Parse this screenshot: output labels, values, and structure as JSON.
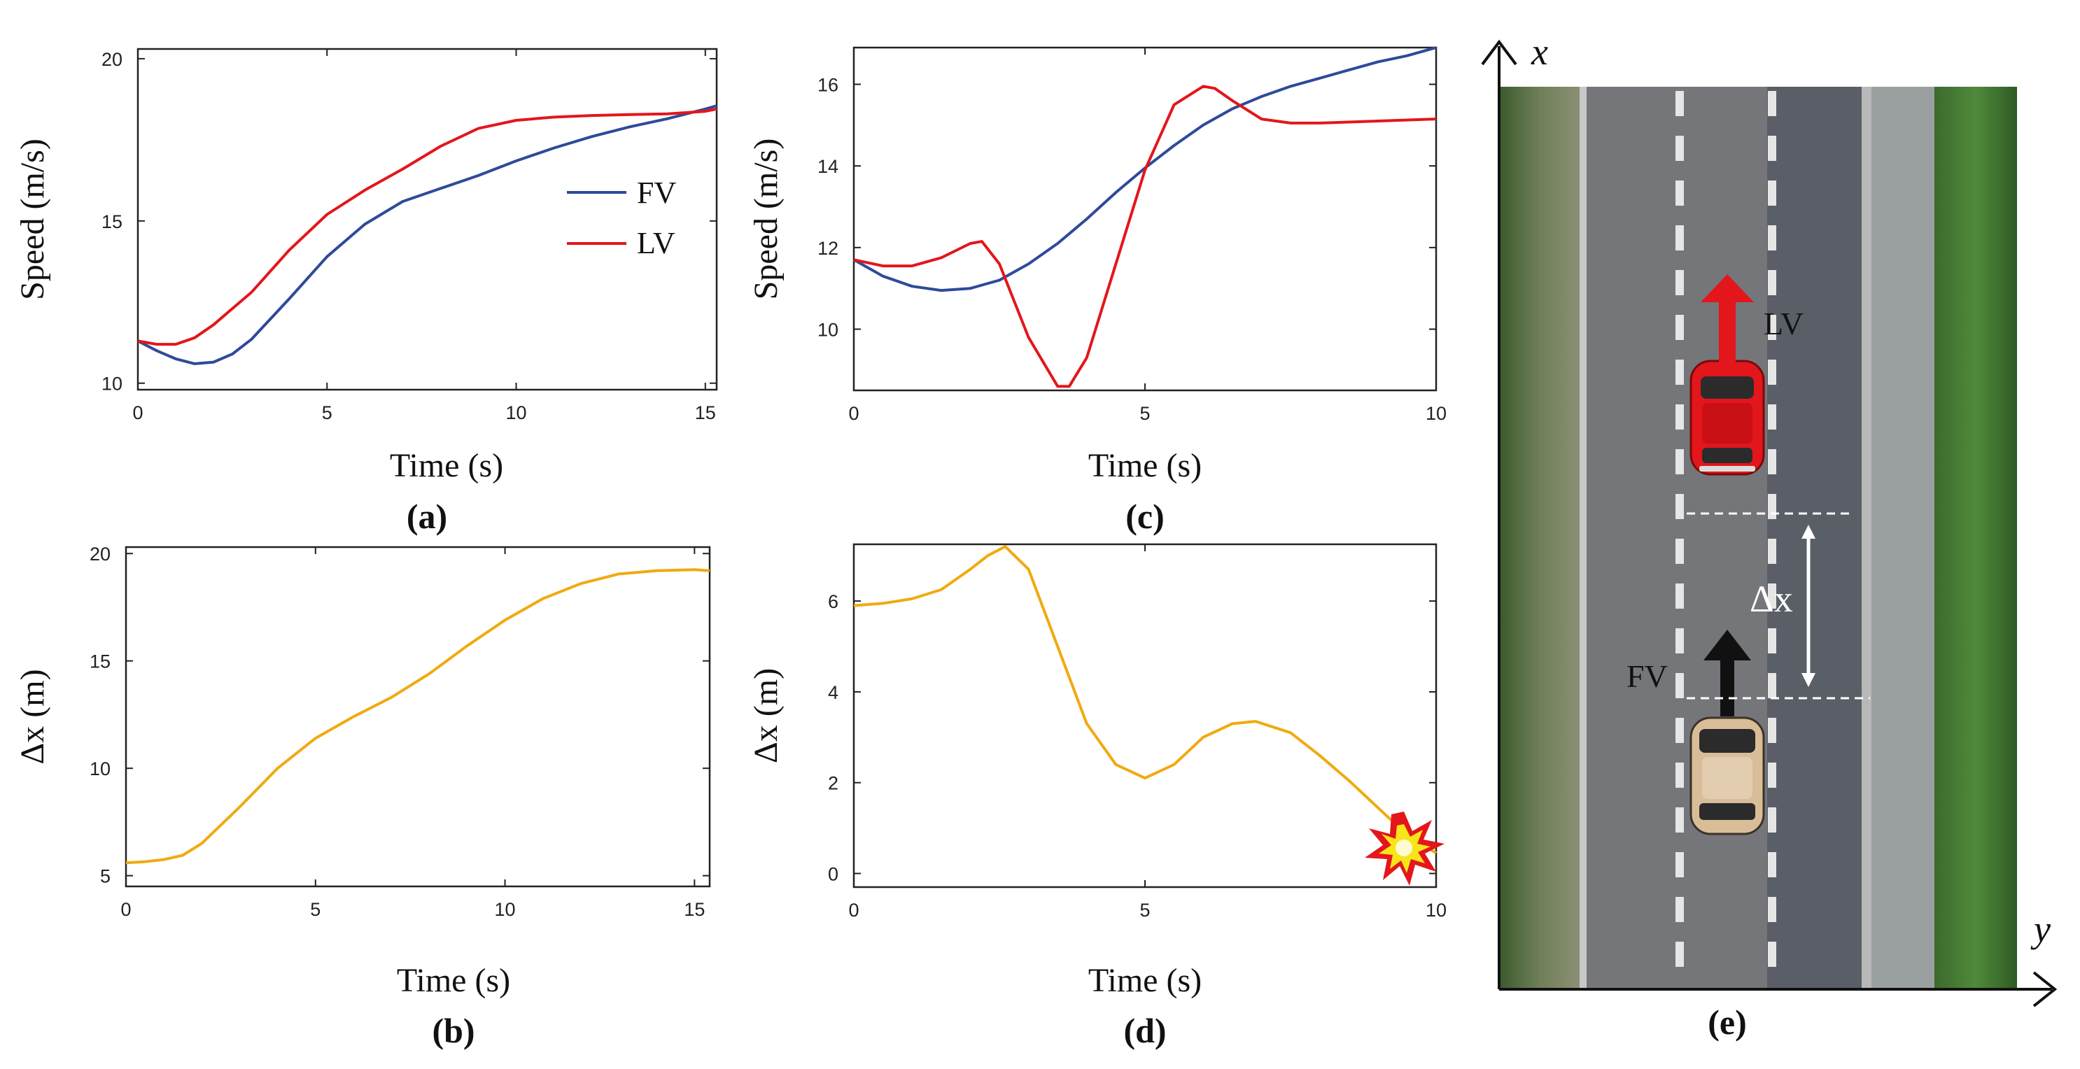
{
  "colors": {
    "fv": "#2e4a9a",
    "lv": "#e3161c",
    "dx": "#f0aa10"
  },
  "chart_data": [
    {
      "id": "a",
      "type": "line",
      "panel_label": "(a)",
      "xlabel": "Time (s)",
      "ylabel": "Speed (m/s)",
      "xlim": [
        0,
        15.3
      ],
      "ylim": [
        9.8,
        20.3
      ],
      "xticks": [
        0,
        5,
        10,
        15
      ],
      "yticks": [
        10,
        15,
        20
      ],
      "legend": [
        "FV",
        "LV"
      ],
      "legend_position": "center-right",
      "series": [
        {
          "name": "FV",
          "color_key": "fv",
          "x": [
            0,
            0.5,
            1,
            1.5,
            2,
            2.5,
            3,
            4,
            5,
            6,
            7,
            8,
            9,
            10,
            11,
            12,
            13,
            14,
            15,
            15.3
          ],
          "y": [
            11.3,
            11,
            10.75,
            10.6,
            10.65,
            10.9,
            11.35,
            12.6,
            13.9,
            14.9,
            15.6,
            16.0,
            16.4,
            16.85,
            17.25,
            17.6,
            17.9,
            18.15,
            18.45,
            18.55
          ]
        },
        {
          "name": "LV",
          "color_key": "lv",
          "x": [
            0,
            0.5,
            1,
            1.5,
            2,
            2.5,
            3,
            4,
            5,
            6,
            7,
            8,
            9,
            10,
            11,
            12,
            13,
            14,
            15,
            15.3
          ],
          "y": [
            11.3,
            11.2,
            11.2,
            11.4,
            11.8,
            12.3,
            12.8,
            14.1,
            15.2,
            15.95,
            16.6,
            17.3,
            17.85,
            18.1,
            18.2,
            18.25,
            18.28,
            18.3,
            18.38,
            18.45
          ]
        }
      ]
    },
    {
      "id": "b",
      "type": "line",
      "panel_label": "(b)",
      "xlabel": "Time (s)",
      "ylabel": "Δx (m)",
      "xlim": [
        0,
        15.4
      ],
      "ylim": [
        4.5,
        20.3
      ],
      "xticks": [
        0,
        5,
        10,
        15
      ],
      "yticks": [
        5,
        10,
        15,
        20
      ],
      "series": [
        {
          "name": "Δx",
          "color_key": "dx",
          "x": [
            0,
            0.5,
            1,
            1.5,
            2,
            3,
            4,
            5,
            6,
            7,
            8,
            9,
            10,
            11,
            12,
            13,
            14,
            15,
            15.4
          ],
          "y": [
            5.6,
            5.65,
            5.75,
            5.95,
            6.5,
            8.2,
            10.0,
            11.4,
            12.4,
            13.3,
            14.4,
            15.7,
            16.9,
            17.9,
            18.6,
            19.05,
            19.2,
            19.25,
            19.2
          ]
        }
      ]
    },
    {
      "id": "c",
      "type": "line",
      "panel_label": "(c)",
      "xlabel": "Time (s)",
      "ylabel": "Speed (m/s)",
      "xlim": [
        0,
        10
      ],
      "ylim": [
        8.5,
        16.9
      ],
      "xticks": [
        0,
        5,
        10
      ],
      "yticks": [
        10,
        12,
        14,
        16
      ],
      "series": [
        {
          "name": "FV",
          "color_key": "fv",
          "x": [
            0,
            0.5,
            1,
            1.5,
            2,
            2.5,
            3,
            3.5,
            4,
            4.5,
            5,
            5.5,
            6,
            6.5,
            7,
            7.5,
            8,
            8.5,
            9,
            9.5,
            10
          ],
          "y": [
            11.7,
            11.3,
            11.05,
            10.95,
            11.0,
            11.2,
            11.6,
            12.1,
            12.7,
            13.35,
            13.95,
            14.5,
            15.0,
            15.4,
            15.7,
            15.95,
            16.15,
            16.35,
            16.55,
            16.7,
            16.9
          ]
        },
        {
          "name": "LV",
          "color_key": "lv",
          "x": [
            0,
            0.5,
            1,
            1.5,
            2,
            2.2,
            2.5,
            3,
            3.5,
            3.7,
            4,
            4.5,
            5,
            5.5,
            6,
            6.2,
            6.5,
            7,
            7.5,
            8,
            9,
            10
          ],
          "y": [
            11.7,
            11.55,
            11.55,
            11.75,
            12.1,
            12.15,
            11.6,
            9.8,
            8.6,
            8.6,
            9.3,
            11.6,
            13.9,
            15.5,
            15.95,
            15.9,
            15.6,
            15.15,
            15.05,
            15.05,
            15.1,
            15.15
          ]
        }
      ]
    },
    {
      "id": "d",
      "type": "line",
      "panel_label": "(d)",
      "xlabel": "Time (s)",
      "ylabel": "Δx (m)",
      "xlim": [
        0,
        10
      ],
      "ylim": [
        -0.3,
        7.25
      ],
      "xticks": [
        0,
        5,
        10
      ],
      "yticks": [
        0,
        2,
        4,
        6
      ],
      "annotation": "collision-burst",
      "series": [
        {
          "name": "Δx",
          "color_key": "dx",
          "x": [
            0,
            0.5,
            1,
            1.5,
            2,
            2.3,
            2.6,
            3,
            3.5,
            4,
            4.5,
            5,
            5.5,
            6,
            6.5,
            6.9,
            7.5,
            8,
            8.5,
            9,
            9.5,
            10
          ],
          "y": [
            5.9,
            5.95,
            6.05,
            6.25,
            6.7,
            7.0,
            7.2,
            6.7,
            5.0,
            3.3,
            2.4,
            2.1,
            2.4,
            3.0,
            3.3,
            3.35,
            3.1,
            2.6,
            2.05,
            1.45,
            0.85,
            0.45
          ]
        }
      ]
    }
  ],
  "scene": {
    "panel_label": "(e)",
    "x_axis_label": "x",
    "y_axis_label": "y",
    "lv_label": "LV",
    "fv_label": "FV",
    "gap_label": "Δx"
  }
}
